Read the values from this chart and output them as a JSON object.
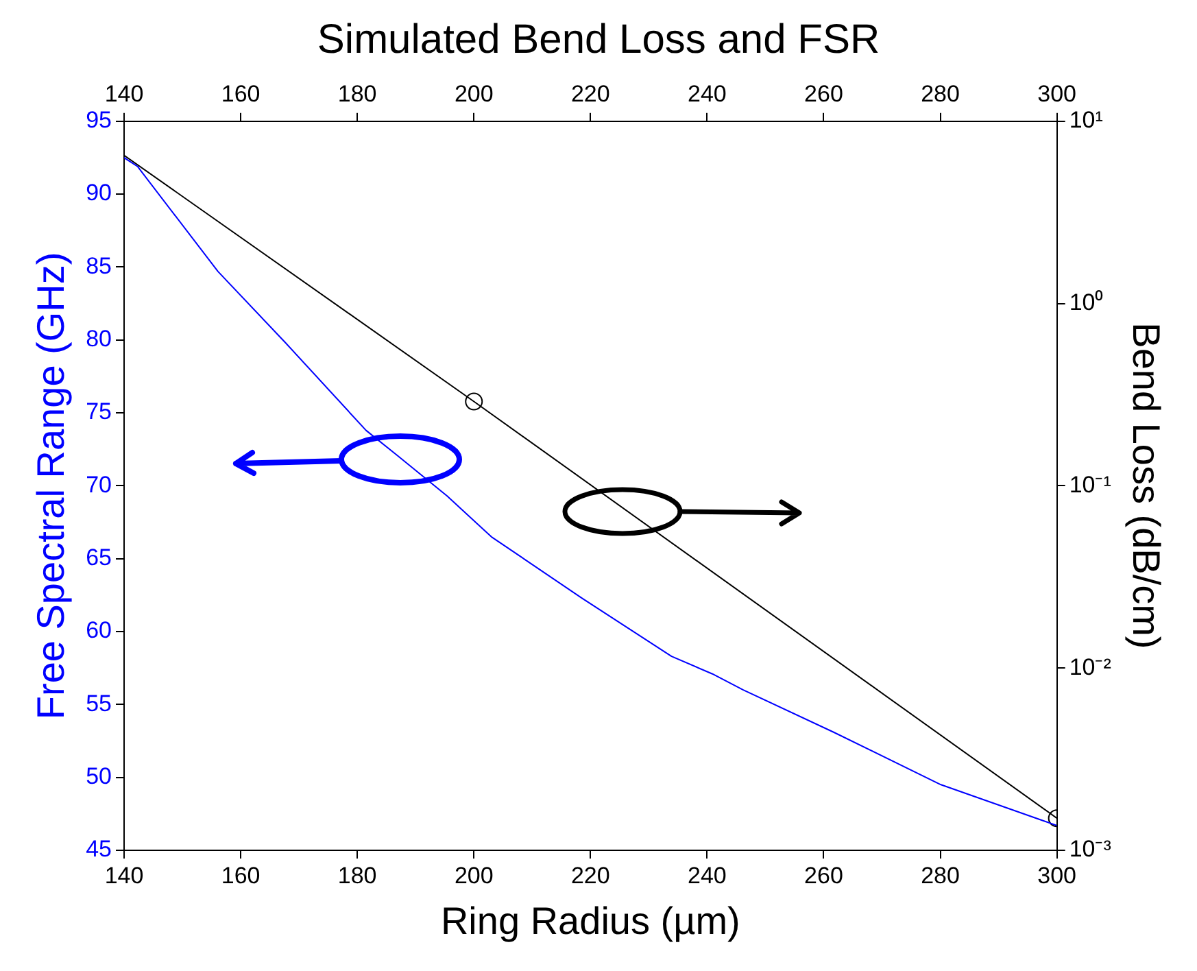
{
  "chart_data": {
    "type": "line",
    "title": "Simulated Bend Loss and FSR",
    "xlabel": "Ring Radius (µm)",
    "ylabel": "Free Spectral Range (GHz)",
    "y2label": "Bend Loss (dB/cm)",
    "xlim": [
      140,
      300
    ],
    "xticks": [
      140,
      160,
      180,
      200,
      220,
      240,
      260,
      280,
      300
    ],
    "x2lim": [
      140,
      300
    ],
    "x2ticks": [
      140,
      160,
      180,
      200,
      220,
      240,
      260,
      280,
      300
    ],
    "ylim": [
      45,
      95
    ],
    "yticks": [
      45,
      50,
      55,
      60,
      65,
      70,
      75,
      80,
      85,
      90,
      95
    ],
    "y2lim": [
      0.001,
      10
    ],
    "y2ticks": [
      {
        "value": 0.001,
        "label": "10⁻³"
      },
      {
        "value": 0.01,
        "label": "10⁻²"
      },
      {
        "value": 0.1,
        "label": "10⁻¹"
      },
      {
        "value": 1,
        "label": "10⁰"
      },
      {
        "value": 10,
        "label": "10¹"
      }
    ],
    "log": "y2",
    "legend": false,
    "series": [
      {
        "axis": "y",
        "color": "#0000ff",
        "marker": "none",
        "x": [
          140,
          142.3,
          156.1,
          167.7,
          181.5,
          186.8,
          195.4,
          203,
          218.5,
          233.9,
          240.9,
          246.2,
          261.7,
          280.1,
          300
        ],
        "values": [
          92.5,
          91.9,
          84.7,
          79.8,
          73.8,
          72.1,
          69.3,
          66.5,
          62.3,
          58.3,
          57.1,
          56.0,
          53.1,
          49.5,
          46.7
        ]
      },
      {
        "axis": "y2",
        "color": "#000000",
        "marker": "none",
        "x": [
          140,
          200,
          300
        ],
        "values": [
          6.5,
          0.29,
          0.0015
        ]
      },
      {
        "type": "scatter",
        "axis": "y2",
        "color": "#000000",
        "marker": "circle",
        "x": [
          200,
          300
        ],
        "values": [
          0.29,
          0.0015
        ]
      }
    ]
  }
}
